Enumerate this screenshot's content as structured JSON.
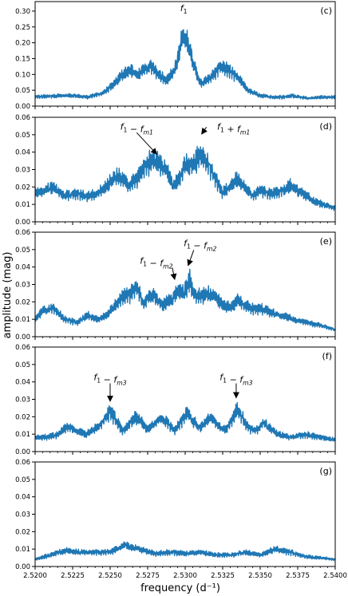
{
  "chart_data": {
    "type": "line",
    "xlabel": "frequency (d⁻¹)",
    "ylabel": "amplitude (mag)",
    "xlim": [
      2.52,
      2.54
    ],
    "x_ticks": [
      "2.5200",
      "2.5225",
      "2.5250",
      "2.5275",
      "2.5300",
      "2.5325",
      "2.5350",
      "2.5375",
      "2.5400"
    ],
    "line_color": "#1f77b4",
    "panels": [
      {
        "label": "(c)",
        "ylim": [
          0,
          0.33
        ],
        "y_ticks": [
          "0.00",
          "0.05",
          "0.10",
          "0.15",
          "0.20",
          "0.25",
          "0.30"
        ],
        "envelope": [
          [
            2.52,
            0.035
          ],
          [
            2.5215,
            0.04
          ],
          [
            2.5225,
            0.04
          ],
          [
            2.5235,
            0.035
          ],
          [
            2.5245,
            0.05
          ],
          [
            2.5252,
            0.08
          ],
          [
            2.5258,
            0.12
          ],
          [
            2.5263,
            0.14
          ],
          [
            2.5268,
            0.12
          ],
          [
            2.5273,
            0.14
          ],
          [
            2.5278,
            0.155
          ],
          [
            2.5283,
            0.12
          ],
          [
            2.5288,
            0.1
          ],
          [
            2.5293,
            0.14
          ],
          [
            2.5296,
            0.2
          ],
          [
            2.5298,
            0.26
          ],
          [
            2.53,
            0.27
          ],
          [
            2.5302,
            0.24
          ],
          [
            2.5305,
            0.17
          ],
          [
            2.531,
            0.09
          ],
          [
            2.5315,
            0.1
          ],
          [
            2.532,
            0.13
          ],
          [
            2.5324,
            0.155
          ],
          [
            2.5328,
            0.14
          ],
          [
            2.5335,
            0.11
          ],
          [
            2.5342,
            0.06
          ],
          [
            2.535,
            0.04
          ],
          [
            2.5358,
            0.035
          ],
          [
            2.5365,
            0.035
          ],
          [
            2.5372,
            0.04
          ],
          [
            2.5382,
            0.03
          ],
          [
            2.5392,
            0.035
          ],
          [
            2.54,
            0.035
          ]
        ],
        "annotations": [
          {
            "text": "f₁",
            "x": 2.5299,
            "y": 0.3
          }
        ]
      },
      {
        "label": "(d)",
        "ylim": [
          0,
          0.06
        ],
        "y_ticks": [
          "0.00",
          "0.01",
          "0.02",
          "0.03",
          "0.04",
          "0.05",
          "0.06"
        ],
        "envelope": [
          [
            2.52,
            0.02
          ],
          [
            2.5205,
            0.022
          ],
          [
            2.5212,
            0.024
          ],
          [
            2.522,
            0.018
          ],
          [
            2.5228,
            0.02
          ],
          [
            2.5235,
            0.018
          ],
          [
            2.5242,
            0.02
          ],
          [
            2.5248,
            0.025
          ],
          [
            2.5253,
            0.032
          ],
          [
            2.5258,
            0.03
          ],
          [
            2.5262,
            0.025
          ],
          [
            2.5268,
            0.03
          ],
          [
            2.5273,
            0.038
          ],
          [
            2.5278,
            0.044
          ],
          [
            2.5283,
            0.04
          ],
          [
            2.5288,
            0.035
          ],
          [
            2.5292,
            0.025
          ],
          [
            2.5296,
            0.03
          ],
          [
            2.53,
            0.04
          ],
          [
            2.5305,
            0.04
          ],
          [
            2.5309,
            0.045
          ],
          [
            2.5312,
            0.046
          ],
          [
            2.5316,
            0.04
          ],
          [
            2.532,
            0.03
          ],
          [
            2.5325,
            0.02
          ],
          [
            2.533,
            0.025
          ],
          [
            2.5335,
            0.03
          ],
          [
            2.534,
            0.024
          ],
          [
            2.5345,
            0.018
          ],
          [
            2.535,
            0.022
          ],
          [
            2.5358,
            0.02
          ],
          [
            2.5365,
            0.022
          ],
          [
            2.537,
            0.025
          ],
          [
            2.5378,
            0.02
          ],
          [
            2.5385,
            0.015
          ],
          [
            2.5392,
            0.012
          ],
          [
            2.54,
            0.01
          ]
        ],
        "annotations": [
          {
            "text": "f₁ − f_m1",
            "x": 2.5281,
            "y": 0.038
          },
          {
            "text": "f₁ + f_m1",
            "x": 2.5311,
            "y": 0.0495
          }
        ]
      },
      {
        "label": "(e)",
        "ylim": [
          0,
          0.06
        ],
        "y_ticks": [
          "0.00",
          "0.01",
          "0.02",
          "0.03",
          "0.04",
          "0.05",
          "0.06"
        ],
        "envelope": [
          [
            2.52,
            0.012
          ],
          [
            2.5205,
            0.018
          ],
          [
            2.5212,
            0.02
          ],
          [
            2.522,
            0.012
          ],
          [
            2.5228,
            0.01
          ],
          [
            2.5235,
            0.015
          ],
          [
            2.5242,
            0.012
          ],
          [
            2.5248,
            0.015
          ],
          [
            2.5253,
            0.022
          ],
          [
            2.5258,
            0.028
          ],
          [
            2.5263,
            0.03
          ],
          [
            2.5268,
            0.035
          ],
          [
            2.5272,
            0.022
          ],
          [
            2.5277,
            0.03
          ],
          [
            2.528,
            0.028
          ],
          [
            2.5285,
            0.022
          ],
          [
            2.529,
            0.025
          ],
          [
            2.5295,
            0.032
          ],
          [
            2.5299,
            0.03
          ],
          [
            2.5303,
            0.04
          ],
          [
            2.5306,
            0.03
          ],
          [
            2.531,
            0.028
          ],
          [
            2.5315,
            0.03
          ],
          [
            2.532,
            0.028
          ],
          [
            2.5325,
            0.022
          ],
          [
            2.533,
            0.02
          ],
          [
            2.5335,
            0.025
          ],
          [
            2.534,
            0.022
          ],
          [
            2.5345,
            0.02
          ],
          [
            2.535,
            0.02
          ],
          [
            2.5355,
            0.018
          ],
          [
            2.536,
            0.016
          ],
          [
            2.5365,
            0.015
          ],
          [
            2.5372,
            0.012
          ],
          [
            2.538,
            0.01
          ],
          [
            2.539,
            0.008
          ],
          [
            2.54,
            0.005
          ]
        ],
        "annotations": [
          {
            "text": "f₁ − f_m2",
            "x": 2.5293,
            "y": 0.032
          },
          {
            "text": "f₁ − f_m2",
            "x": 2.5302,
            "y": 0.04
          }
        ]
      },
      {
        "label": "(f)",
        "ylim": [
          0,
          0.06
        ],
        "y_ticks": [
          "0.00",
          "0.01",
          "0.02",
          "0.03",
          "0.04",
          "0.05",
          "0.06"
        ],
        "envelope": [
          [
            2.52,
            0.01
          ],
          [
            2.5208,
            0.01
          ],
          [
            2.5215,
            0.012
          ],
          [
            2.5222,
            0.018
          ],
          [
            2.5228,
            0.015
          ],
          [
            2.5234,
            0.012
          ],
          [
            2.524,
            0.016
          ],
          [
            2.5246,
            0.022
          ],
          [
            2.525,
            0.028
          ],
          [
            2.5254,
            0.022
          ],
          [
            2.5258,
            0.015
          ],
          [
            2.5262,
            0.018
          ],
          [
            2.5266,
            0.024
          ],
          [
            2.527,
            0.022
          ],
          [
            2.5275,
            0.015
          ],
          [
            2.528,
            0.02
          ],
          [
            2.5284,
            0.024
          ],
          [
            2.5288,
            0.02
          ],
          [
            2.5293,
            0.015
          ],
          [
            2.5298,
            0.022
          ],
          [
            2.5301,
            0.028
          ],
          [
            2.5305,
            0.022
          ],
          [
            2.531,
            0.016
          ],
          [
            2.5314,
            0.022
          ],
          [
            2.5318,
            0.024
          ],
          [
            2.5322,
            0.018
          ],
          [
            2.5327,
            0.015
          ],
          [
            2.5331,
            0.022
          ],
          [
            2.5335,
            0.03
          ],
          [
            2.5339,
            0.022
          ],
          [
            2.5343,
            0.016
          ],
          [
            2.5348,
            0.015
          ],
          [
            2.5352,
            0.02
          ],
          [
            2.5357,
            0.016
          ],
          [
            2.5362,
            0.012
          ],
          [
            2.537,
            0.01
          ],
          [
            2.538,
            0.012
          ],
          [
            2.539,
            0.01
          ],
          [
            2.54,
            0.008
          ]
        ],
        "annotations": [
          {
            "text": "f₁ − f_m3",
            "x": 2.525,
            "y": 0.028
          },
          {
            "text": "f₁ − f_m3",
            "x": 2.5334,
            "y": 0.03
          }
        ]
      },
      {
        "label": "(g)",
        "ylim": [
          0,
          0.06
        ],
        "y_ticks": [
          "0.00",
          "0.01",
          "0.02",
          "0.03",
          "0.04",
          "0.05",
          "0.06"
        ],
        "envelope": [
          [
            2.52,
            0.005
          ],
          [
            2.521,
            0.008
          ],
          [
            2.522,
            0.011
          ],
          [
            2.523,
            0.01
          ],
          [
            2.524,
            0.01
          ],
          [
            2.525,
            0.01
          ],
          [
            2.526,
            0.015
          ],
          [
            2.527,
            0.012
          ],
          [
            2.528,
            0.009
          ],
          [
            2.529,
            0.01
          ],
          [
            2.53,
            0.009
          ],
          [
            2.531,
            0.01
          ],
          [
            2.532,
            0.008
          ],
          [
            2.533,
            0.008
          ],
          [
            2.534,
            0.01
          ],
          [
            2.535,
            0.008
          ],
          [
            2.536,
            0.012
          ],
          [
            2.537,
            0.01
          ],
          [
            2.538,
            0.007
          ],
          [
            2.539,
            0.006
          ],
          [
            2.54,
            0.005
          ]
        ],
        "annotations": []
      }
    ]
  }
}
